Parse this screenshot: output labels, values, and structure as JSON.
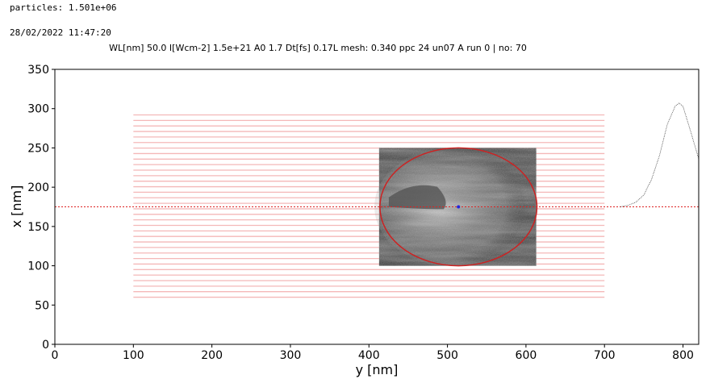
{
  "header": {
    "particles": "particles: 1.501e+06",
    "timestamp": "28/02/2022 11:47:20",
    "subtitle": "WL[nm] 50.0 I[Wcm-2] 1.5e+21 A0 1.7 Dt[fs] 0.17L mesh: 0.340 ppc 24 un07 A run 0 | no: 70"
  },
  "chart_data": {
    "type": "scatter",
    "title": "WL[nm] 50.0 I[Wcm-2] 1.5e+21 A0 1.7 Dt[fs] 0.17L mesh: 0.340 ppc 24 un07 A run 0 | no: 70",
    "xlabel": "y [nm]",
    "ylabel": "x [nm]",
    "xlim": [
      0,
      820
    ],
    "ylim": [
      0,
      350
    ],
    "xticks": [
      0,
      100,
      200,
      300,
      400,
      500,
      600,
      700,
      800
    ],
    "yticks": [
      0,
      50,
      100,
      150,
      200,
      250,
      300,
      350
    ],
    "grid": false,
    "center_line_y": 175,
    "target_lines": {
      "x_start": 100,
      "x_end": 700,
      "y_min": 60,
      "y_max": 292,
      "count": 34,
      "color": "#f4b8b8"
    },
    "image_extent": {
      "x": [
        413,
        613
      ],
      "y": [
        100,
        250
      ]
    },
    "ellipse": {
      "cx": 514,
      "cy": 175,
      "rx": 100,
      "ry": 75,
      "color": "#cc2222"
    },
    "center_point": {
      "x": 514,
      "y": 175,
      "color": "#2222dd"
    },
    "pulse_profile": {
      "x": [
        720,
        730,
        740,
        750,
        760,
        770,
        780,
        790,
        795,
        800,
        810,
        820
      ],
      "y": [
        175,
        177,
        181,
        190,
        210,
        240,
        280,
        303,
        307,
        303,
        270,
        236
      ]
    }
  }
}
